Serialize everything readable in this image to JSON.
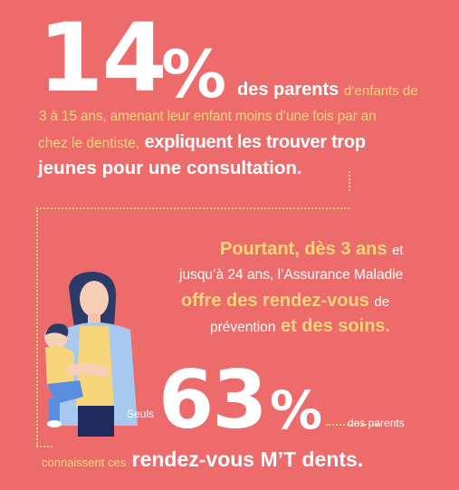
{
  "stat1": {
    "number": "14",
    "percent": "%",
    "line1_bold": "des parents",
    "line1_light": "d’enfants de",
    "line2": "3 à 15 ans, amenant leur enfant moins d’une fois par an",
    "line3_light": "chez le dentiste,",
    "line3_bold": "expliquent les trouver trop",
    "line4_bold": "jeunes pour une consultation."
  },
  "middle": {
    "l1_bold": "Pourtant, dès 3 ans",
    "l1_light": "et",
    "l2": "jusqu’à 24 ans, l’Assurance Maladie",
    "l3_bold": "offre des rendez-vous",
    "l3_light": "de",
    "l4_light": "prévention",
    "l4_bold": "et des soins."
  },
  "stat2": {
    "prefix": "Seuls",
    "number": "63",
    "percent": "%",
    "suffix": "des parents",
    "line2_light": "connaissent ces",
    "line2_bold": "rendez-vous M’T dents."
  },
  "colors": {
    "background": "#ee6b6b",
    "accent": "#f7d57a",
    "text": "#ffffff"
  },
  "illustration": {
    "icon": "mother-with-child-illustration"
  }
}
